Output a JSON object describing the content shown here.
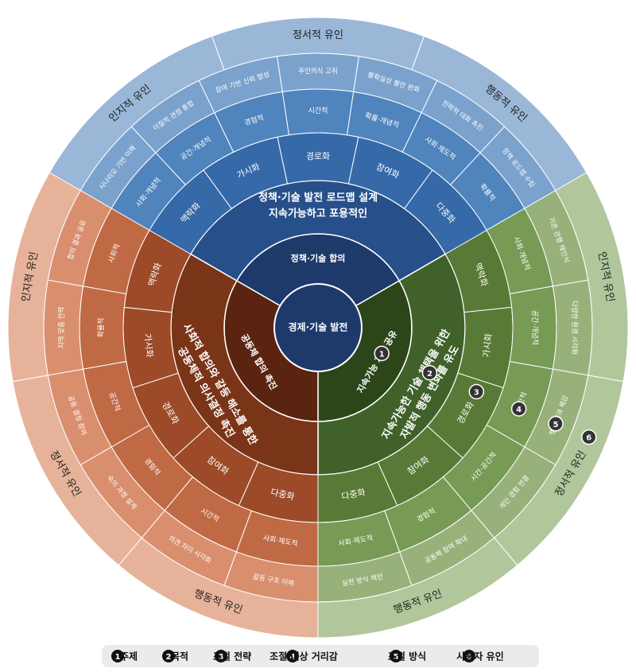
{
  "center": "경제·기술 발전",
  "sectors": [
    {
      "purpose": "정책·기술 합의",
      "theme_lines": [
        "지속가능하고 포용적인",
        "정책·기술 발전 로드맵 설계"
      ],
      "strategies": [
        "맥락화",
        "가시화",
        "경로화",
        "참여화",
        "다중화"
      ],
      "distances": [
        "사회·개념적",
        "공간·개념적",
        "경험적",
        "시간적",
        "확률·개념적",
        "사회·제도적",
        "확률적"
      ],
      "methods": [
        "시나리오 기반 이해",
        "이질적 관점 통합",
        "참여 기반 신뢰 형성",
        "주인의식 고취",
        "불확실성 불안 완화",
        "전략적 대화 촉진",
        "정책 로드맵 수립"
      ],
      "factors": [
        "인지적 유인",
        "정서적 유인",
        "행동적 유인"
      ]
    },
    {
      "purpose": "지속가능 가치 공유",
      "theme_lines": [
        "지속가능한 기술 채택을 위한",
        "자발적 행동 변화를 유도"
      ],
      "strategies": [
        "맥락화",
        "가시화",
        "경로화",
        "참여화",
        "다중화"
      ],
      "distances": [
        "사회·개념적",
        "공간·개념적",
        "시간적",
        "시간·공간적",
        "경험적",
        "사회·제도적"
      ],
      "methods": [
        "기존 관행 재인식",
        "다양한 환경 시각화",
        "행동 결과 체감",
        "개인 경험 연결",
        "공동체 참여 확대",
        "실천 방식 제안"
      ],
      "factors": [
        "인지적 유인",
        "정서적 유인",
        "행동적 유인"
      ]
    },
    {
      "purpose": "공동체 합의 촉진",
      "theme_lines": [
        "사회적 합의와 갈등 해소를 통한",
        "공동체적 의사결정 촉진"
      ],
      "strategies": [
        "다중화",
        "참여화",
        "경로화",
        "가시화",
        "맥락화"
      ],
      "distances": [
        "사회·제도적",
        "시간적",
        "경험적",
        "공간적",
        "확률적",
        "사회적"
      ],
      "methods": [
        "갈등 구조 이해",
        "의견 차이 시각화",
        "숙의 과정 설계",
        "공동 결정 참여",
        "지역 맞춤 전략",
        "합의 결과 공유"
      ],
      "factors": [
        "행동적 유인",
        "정서적 유인",
        "인지적 유인"
      ]
    }
  ],
  "legend": [
    {
      "num": "1",
      "label": "주제"
    },
    {
      "num": "2",
      "label": "목적"
    },
    {
      "num": "3",
      "label": "조절 전략"
    },
    {
      "num": "4",
      "label": "조절 대상 거리감"
    },
    {
      "num": "5",
      "label": "조절 방식"
    },
    {
      "num": "6",
      "label": "사용자 유인"
    }
  ]
}
